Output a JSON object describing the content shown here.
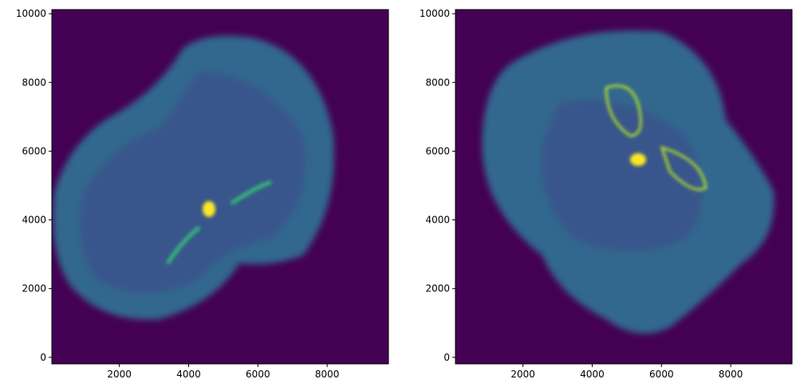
{
  "chart_data": [
    {
      "type": "image",
      "color": "#440154",
      "xlim": [
        50,
        9770
      ],
      "ylim": [
        -190,
        10120
      ],
      "xticks": [
        2000,
        4000,
        6000,
        8000
      ],
      "yticks": [
        0,
        2000,
        4000,
        6000,
        8000,
        10000
      ]
    },
    {
      "type": "image",
      "color": "#440154",
      "xlim": [
        50,
        9770
      ],
      "ylim": [
        -190,
        10120
      ],
      "xticks": [
        2000,
        4000,
        6000,
        8000
      ],
      "yticks": [
        0,
        2000,
        4000,
        6000,
        8000,
        10000
      ]
    }
  ]
}
